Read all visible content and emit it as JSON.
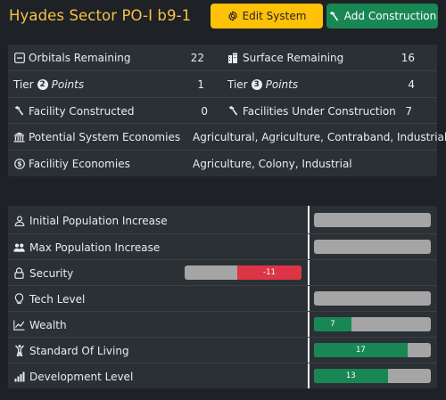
{
  "header": {
    "title": "Hyades Sector PO-I b9-1",
    "edit_label": "Edit System",
    "add_label": "Add Construction"
  },
  "summary": {
    "orbitals_label": "Orbitals Remaining",
    "orbitals_value": "22",
    "surface_label": "Surface Remaining",
    "surface_value": "16",
    "tier2_word": "Tier",
    "tier2_num": "2",
    "tier2_points": "Points",
    "tier2_value": "1",
    "tier3_word": "Tier",
    "tier3_num": "3",
    "tier3_points": "Points",
    "tier3_value": "4",
    "facility_constructed_label": "Facility Constructed",
    "facility_constructed_value": "0",
    "under_construction_label": "Facilities Under Construction",
    "under_construction_value": "7",
    "potential_label": "Potential System Economies",
    "potential_value": "Agricultural, Agriculture, Contraband, Industrial",
    "facility_econ_label": "Facilitiy Economies",
    "facility_econ_value": "Agriculture, Colony, Industrial"
  },
  "stats": [
    {
      "label": "Initial Population Increase",
      "icon": "person-icon",
      "value": null,
      "text": ""
    },
    {
      "label": "Max Population Increase",
      "icon": "people-icon",
      "value": null,
      "text": ""
    },
    {
      "label": "Security",
      "icon": "lock-icon",
      "value": -11,
      "text": "-11",
      "fraction": 0.55
    },
    {
      "label": "Tech Level",
      "icon": "lightbulb-icon",
      "value": null,
      "text": ""
    },
    {
      "label": "Wealth",
      "icon": "line-graph-icon",
      "value": 7,
      "text": "7",
      "fraction": 0.32
    },
    {
      "label": "Standard Of Living",
      "icon": "person-arms-up-icon",
      "value": 17,
      "text": "17",
      "fraction": 0.8
    },
    {
      "label": "Development Level",
      "icon": "bar-chart-icon",
      "value": 13,
      "text": "13",
      "fraction": 0.63
    }
  ],
  "colors": {
    "title": "#f6c14a",
    "edit_button": "#ffc107",
    "add_button": "#198754",
    "positive_bar": "#198754",
    "negative_bar": "#dc3545",
    "empty_bar": "#a5a5a5"
  }
}
